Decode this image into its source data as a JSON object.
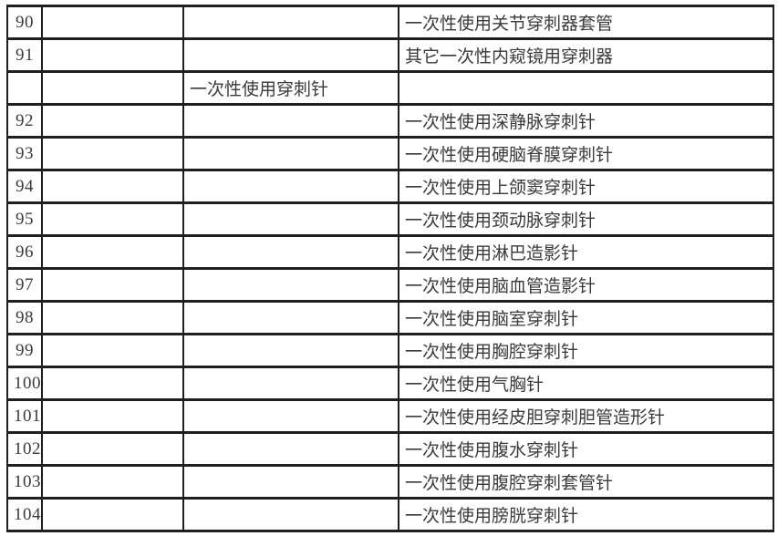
{
  "colors": {
    "border": "#1f1f1f",
    "text": "#3a3a3a",
    "background": "#ffffff"
  },
  "table": {
    "rows": [
      {
        "num": "90",
        "blank": "",
        "category": "",
        "item": "一次性使用关节穿刺器套管"
      },
      {
        "num": "91",
        "blank": "",
        "category": "",
        "item": "其它一次性内窥镜用穿刺器"
      },
      {
        "num": "",
        "blank": "",
        "category": "一次性使用穿刺针",
        "item": ""
      },
      {
        "num": "92",
        "blank": "",
        "category": "",
        "item": "一次性使用深静脉穿刺针"
      },
      {
        "num": "93",
        "blank": "",
        "category": "",
        "item": "一次性使用硬脑脊膜穿刺针"
      },
      {
        "num": "94",
        "blank": "",
        "category": "",
        "item": "一次性使用上颌窦穿刺针"
      },
      {
        "num": "95",
        "blank": "",
        "category": "",
        "item": "一次性使用颈动脉穿刺针"
      },
      {
        "num": "96",
        "blank": "",
        "category": "",
        "item": "一次性使用淋巴造影针"
      },
      {
        "num": "97",
        "blank": "",
        "category": "",
        "item": "一次性使用脑血管造影针"
      },
      {
        "num": "98",
        "blank": "",
        "category": "",
        "item": "一次性使用脑室穿刺针"
      },
      {
        "num": "99",
        "blank": "",
        "category": "",
        "item": "一次性使用胸腔穿刺针"
      },
      {
        "num": "100",
        "blank": "",
        "category": "",
        "item": "一次性使用气胸针"
      },
      {
        "num": "101",
        "blank": "",
        "category": "",
        "item": "一次性使用经皮胆穿刺胆管造形针"
      },
      {
        "num": "102",
        "blank": "",
        "category": "",
        "item": "一次性使用腹水穿刺针"
      },
      {
        "num": "103",
        "blank": "",
        "category": "",
        "item": "一次性使用腹腔穿刺套管针"
      },
      {
        "num": "104",
        "blank": "",
        "category": "",
        "item": "一次性使用膀胱穿刺针"
      }
    ]
  }
}
